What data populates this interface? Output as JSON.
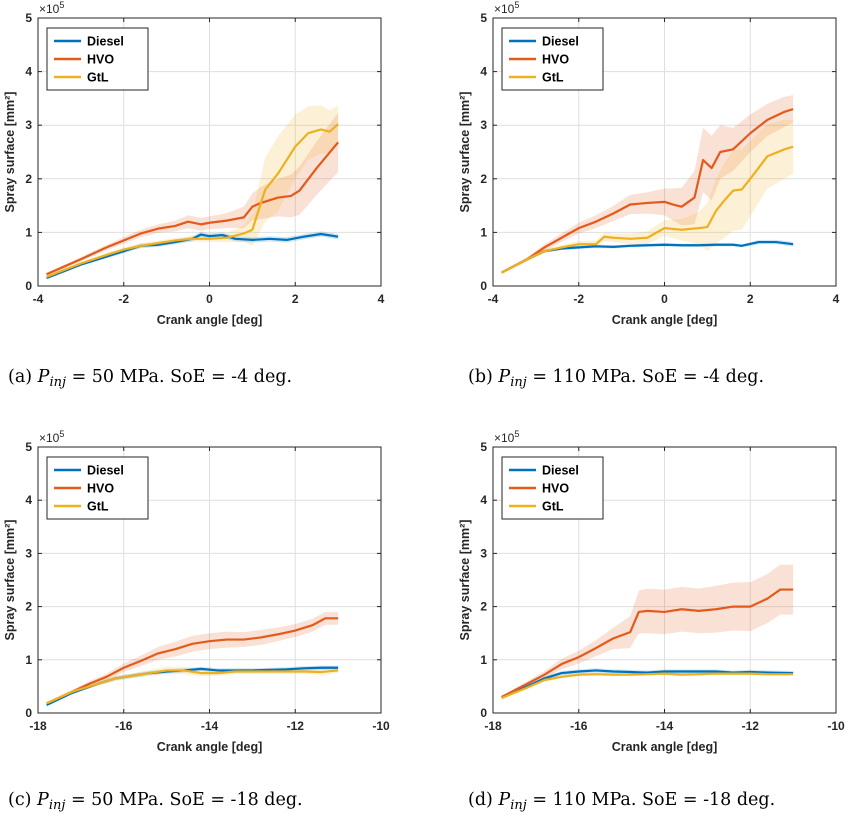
{
  "chart_data": [
    {
      "type": "line",
      "panel": "a",
      "caption": {
        "prefix": "(a)",
        "symbol": "P",
        "subscript": "inj",
        "rest": "= 50 MPa. SoE = -4 deg."
      },
      "xlabel": "Crank angle [deg]",
      "ylabel": "Spray surface [mm²]",
      "yexponent": "×10",
      "yexponent_power": "5",
      "xlim": [
        -4,
        4
      ],
      "ylim": [
        0,
        5
      ],
      "xticks": [
        -4,
        -2,
        0,
        2,
        4
      ],
      "yticks": [
        0,
        1,
        2,
        3,
        4,
        5
      ],
      "grid": true,
      "legend_location": "top-left",
      "series": [
        {
          "name": "Diesel",
          "color": "#0072BD",
          "x": [
            -3.8,
            -3.0,
            -2.4,
            -2.0,
            -1.6,
            -1.2,
            -0.8,
            -0.4,
            -0.2,
            0.0,
            0.3,
            0.6,
            1.0,
            1.4,
            1.8,
            2.2,
            2.6,
            3.0
          ],
          "y": [
            0.15,
            0.4,
            0.55,
            0.65,
            0.75,
            0.77,
            0.82,
            0.88,
            0.96,
            0.93,
            0.95,
            0.88,
            0.86,
            0.88,
            0.86,
            0.92,
            0.97,
            0.92
          ],
          "band": [
            0.03,
            0.03,
            0.03,
            0.04,
            0.04,
            0.04,
            0.04,
            0.05,
            0.05,
            0.05,
            0.05,
            0.05,
            0.05,
            0.05,
            0.05,
            0.05,
            0.05,
            0.05
          ]
        },
        {
          "name": "HVO",
          "color": "#E35A1B",
          "x": [
            -3.8,
            -3.0,
            -2.4,
            -2.0,
            -1.6,
            -1.2,
            -0.8,
            -0.5,
            -0.2,
            0.0,
            0.4,
            0.8,
            1.0,
            1.2,
            1.6,
            1.9,
            2.1,
            2.5,
            3.0
          ],
          "y": [
            0.22,
            0.5,
            0.72,
            0.85,
            0.98,
            1.07,
            1.12,
            1.2,
            1.15,
            1.18,
            1.22,
            1.28,
            1.48,
            1.55,
            1.65,
            1.68,
            1.78,
            2.2,
            2.68
          ],
          "band": [
            0.03,
            0.04,
            0.05,
            0.06,
            0.07,
            0.08,
            0.1,
            0.12,
            0.12,
            0.12,
            0.14,
            0.2,
            0.25,
            0.3,
            0.35,
            0.4,
            0.45,
            0.5,
            0.55
          ]
        },
        {
          "name": "GtL",
          "color": "#EDB120",
          "x": [
            -3.8,
            -3.0,
            -2.4,
            -2.0,
            -1.6,
            -1.2,
            -0.8,
            -0.4,
            0.0,
            0.4,
            0.8,
            1.0,
            1.3,
            1.6,
            2.0,
            2.3,
            2.6,
            2.8,
            3.0
          ],
          "y": [
            0.17,
            0.42,
            0.58,
            0.68,
            0.75,
            0.8,
            0.85,
            0.88,
            0.88,
            0.9,
            0.98,
            1.05,
            1.8,
            2.1,
            2.6,
            2.85,
            2.92,
            2.88,
            3.02
          ],
          "band": [
            0.03,
            0.03,
            0.04,
            0.04,
            0.05,
            0.05,
            0.05,
            0.05,
            0.06,
            0.08,
            0.15,
            0.3,
            0.6,
            0.7,
            0.6,
            0.5,
            0.45,
            0.4,
            0.35
          ]
        }
      ]
    },
    {
      "type": "line",
      "panel": "b",
      "caption": {
        "prefix": "(b)",
        "symbol": "P",
        "subscript": "inj",
        "rest": "= 110 MPa. SoE = -4 deg."
      },
      "xlabel": "Crank angle [deg]",
      "ylabel": "Spray surface [mm²]",
      "yexponent": "×10",
      "yexponent_power": "5",
      "xlim": [
        -4,
        4
      ],
      "ylim": [
        0,
        5
      ],
      "xticks": [
        -4,
        -2,
        0,
        2,
        4
      ],
      "yticks": [
        0,
        1,
        2,
        3,
        4,
        5
      ],
      "grid": true,
      "legend_location": "top-left",
      "series": [
        {
          "name": "Diesel",
          "color": "#0072BD",
          "x": [
            -3.8,
            -3.2,
            -2.8,
            -2.4,
            -2.0,
            -1.6,
            -1.2,
            -0.8,
            -0.4,
            0.0,
            0.4,
            0.8,
            1.2,
            1.6,
            1.8,
            2.2,
            2.6,
            3.0
          ],
          "y": [
            0.25,
            0.5,
            0.65,
            0.7,
            0.72,
            0.74,
            0.73,
            0.75,
            0.76,
            0.77,
            0.76,
            0.76,
            0.77,
            0.77,
            0.75,
            0.82,
            0.82,
            0.78
          ],
          "band": [
            0.02,
            0.03,
            0.03,
            0.03,
            0.03,
            0.03,
            0.03,
            0.03,
            0.03,
            0.03,
            0.03,
            0.03,
            0.03,
            0.03,
            0.03,
            0.04,
            0.04,
            0.04
          ]
        },
        {
          "name": "HVO",
          "color": "#E35A1B",
          "x": [
            -3.8,
            -3.2,
            -2.8,
            -2.4,
            -2.0,
            -1.6,
            -1.2,
            -0.8,
            -0.4,
            0.0,
            0.2,
            0.4,
            0.7,
            0.9,
            1.1,
            1.3,
            1.6,
            2.0,
            2.4,
            2.8,
            3.0
          ],
          "y": [
            0.25,
            0.5,
            0.72,
            0.9,
            1.08,
            1.2,
            1.35,
            1.52,
            1.55,
            1.57,
            1.52,
            1.48,
            1.65,
            2.35,
            2.2,
            2.5,
            2.55,
            2.85,
            3.1,
            3.25,
            3.3
          ],
          "band": [
            0.02,
            0.04,
            0.06,
            0.08,
            0.1,
            0.12,
            0.14,
            0.18,
            0.2,
            0.25,
            0.3,
            0.35,
            0.5,
            0.6,
            0.6,
            0.5,
            0.4,
            0.35,
            0.3,
            0.28,
            0.26
          ]
        },
        {
          "name": "GtL",
          "color": "#EDB120",
          "x": [
            -3.8,
            -3.2,
            -2.8,
            -2.4,
            -2.0,
            -1.6,
            -1.4,
            -1.2,
            -0.8,
            -0.4,
            0.0,
            0.4,
            0.8,
            1.0,
            1.2,
            1.4,
            1.6,
            1.8,
            2.0,
            2.4,
            2.8,
            3.0
          ],
          "y": [
            0.25,
            0.5,
            0.65,
            0.72,
            0.78,
            0.78,
            0.92,
            0.9,
            0.88,
            0.9,
            1.08,
            1.05,
            1.08,
            1.1,
            1.4,
            1.6,
            1.78,
            1.8,
            2.0,
            2.42,
            2.55,
            2.6
          ],
          "band": [
            0.02,
            0.03,
            0.04,
            0.05,
            0.06,
            0.07,
            0.08,
            0.08,
            0.1,
            0.12,
            0.15,
            0.2,
            0.3,
            0.45,
            0.6,
            0.7,
            0.75,
            0.75,
            0.7,
            0.6,
            0.55,
            0.5
          ]
        }
      ]
    },
    {
      "type": "line",
      "panel": "c",
      "caption": {
        "prefix": "(c)",
        "symbol": "P",
        "subscript": "inj",
        "rest": "= 50 MPa. SoE = -18 deg."
      },
      "xlabel": "Crank angle [deg]",
      "ylabel": "Spray surface [mm²]",
      "yexponent": "×10",
      "yexponent_power": "5",
      "xlim": [
        -18,
        -10
      ],
      "ylim": [
        0,
        5
      ],
      "xticks": [
        -18,
        -16,
        -14,
        -12,
        -10
      ],
      "yticks": [
        0,
        1,
        2,
        3,
        4,
        5
      ],
      "grid": true,
      "legend_location": "top-left",
      "series": [
        {
          "name": "Diesel",
          "color": "#0072BD",
          "x": [
            -17.8,
            -17.2,
            -16.6,
            -16.2,
            -15.8,
            -15.4,
            -15.0,
            -14.6,
            -14.2,
            -13.8,
            -13.4,
            -13.0,
            -12.6,
            -12.2,
            -11.8,
            -11.4,
            -11.0
          ],
          "y": [
            0.15,
            0.38,
            0.55,
            0.65,
            0.7,
            0.75,
            0.78,
            0.8,
            0.83,
            0.8,
            0.8,
            0.8,
            0.81,
            0.82,
            0.84,
            0.85,
            0.85
          ],
          "band": [
            0.02,
            0.03,
            0.03,
            0.04,
            0.04,
            0.04,
            0.04,
            0.04,
            0.04,
            0.04,
            0.04,
            0.04,
            0.04,
            0.04,
            0.04,
            0.04,
            0.04
          ]
        },
        {
          "name": "HVO",
          "color": "#E35A1B",
          "x": [
            -17.8,
            -17.2,
            -16.8,
            -16.4,
            -16.0,
            -15.6,
            -15.2,
            -14.8,
            -14.4,
            -14.0,
            -13.6,
            -13.2,
            -12.8,
            -12.4,
            -12.0,
            -11.6,
            -11.3,
            -11.0
          ],
          "y": [
            0.18,
            0.4,
            0.55,
            0.68,
            0.85,
            0.98,
            1.12,
            1.2,
            1.3,
            1.35,
            1.38,
            1.38,
            1.42,
            1.48,
            1.55,
            1.65,
            1.78,
            1.78
          ],
          "band": [
            0.02,
            0.04,
            0.05,
            0.06,
            0.08,
            0.1,
            0.12,
            0.14,
            0.15,
            0.15,
            0.15,
            0.14,
            0.14,
            0.13,
            0.12,
            0.12,
            0.12,
            0.12
          ]
        },
        {
          "name": "GtL",
          "color": "#EDB120",
          "x": [
            -17.8,
            -17.2,
            -16.6,
            -16.2,
            -15.8,
            -15.4,
            -15.0,
            -14.6,
            -14.2,
            -13.8,
            -13.4,
            -13.0,
            -12.6,
            -12.2,
            -11.8,
            -11.4,
            -11.0
          ],
          "y": [
            0.18,
            0.4,
            0.55,
            0.65,
            0.7,
            0.75,
            0.8,
            0.8,
            0.75,
            0.75,
            0.78,
            0.78,
            0.78,
            0.78,
            0.78,
            0.77,
            0.8
          ],
          "band": [
            0.02,
            0.03,
            0.04,
            0.05,
            0.05,
            0.06,
            0.07,
            0.07,
            0.06,
            0.05,
            0.05,
            0.05,
            0.05,
            0.05,
            0.05,
            0.05,
            0.05
          ]
        }
      ]
    },
    {
      "type": "line",
      "panel": "d",
      "caption": {
        "prefix": "(d)",
        "symbol": "P",
        "subscript": "inj",
        "rest": "= 110 MPa. SoE = -18 deg."
      },
      "xlabel": "Crank angle [deg]",
      "ylabel": "Spray surface [mm²]",
      "yexponent": "×10",
      "yexponent_power": "5",
      "xlim": [
        -18,
        -10
      ],
      "ylim": [
        0,
        5
      ],
      "xticks": [
        -18,
        -16,
        -14,
        -12,
        -10
      ],
      "yticks": [
        0,
        1,
        2,
        3,
        4,
        5
      ],
      "grid": true,
      "legend_location": "top-left",
      "series": [
        {
          "name": "Diesel",
          "color": "#0072BD",
          "x": [
            -17.8,
            -17.2,
            -16.8,
            -16.4,
            -16.0,
            -15.6,
            -15.2,
            -14.8,
            -14.4,
            -14.0,
            -13.6,
            -13.2,
            -12.8,
            -12.4,
            -12.0,
            -11.6,
            -11.0
          ],
          "y": [
            0.3,
            0.5,
            0.65,
            0.75,
            0.78,
            0.8,
            0.78,
            0.77,
            0.76,
            0.78,
            0.78,
            0.78,
            0.78,
            0.76,
            0.77,
            0.76,
            0.75
          ],
          "band": [
            0.02,
            0.03,
            0.04,
            0.04,
            0.04,
            0.04,
            0.04,
            0.04,
            0.04,
            0.04,
            0.04,
            0.04,
            0.04,
            0.04,
            0.04,
            0.04,
            0.04
          ]
        },
        {
          "name": "HVO",
          "color": "#E35A1B",
          "x": [
            -17.8,
            -17.2,
            -16.8,
            -16.4,
            -16.0,
            -15.6,
            -15.2,
            -14.8,
            -14.6,
            -14.4,
            -14.0,
            -13.6,
            -13.2,
            -12.8,
            -12.4,
            -12.0,
            -11.6,
            -11.3,
            -11.0
          ],
          "y": [
            0.3,
            0.55,
            0.72,
            0.92,
            1.05,
            1.22,
            1.4,
            1.52,
            1.9,
            1.92,
            1.9,
            1.95,
            1.92,
            1.95,
            2.0,
            2.0,
            2.15,
            2.32,
            2.32
          ],
          "band": [
            0.02,
            0.05,
            0.07,
            0.1,
            0.12,
            0.15,
            0.2,
            0.3,
            0.4,
            0.42,
            0.42,
            0.42,
            0.42,
            0.44,
            0.45,
            0.46,
            0.46,
            0.47,
            0.47
          ]
        },
        {
          "name": "GtL",
          "color": "#EDB120",
          "x": [
            -17.8,
            -17.2,
            -16.8,
            -16.4,
            -16.0,
            -15.6,
            -15.2,
            -14.8,
            -14.4,
            -14.0,
            -13.6,
            -13.2,
            -12.8,
            -12.4,
            -12.0,
            -11.6,
            -11.0
          ],
          "y": [
            0.28,
            0.48,
            0.62,
            0.68,
            0.72,
            0.73,
            0.72,
            0.72,
            0.73,
            0.74,
            0.72,
            0.73,
            0.74,
            0.74,
            0.74,
            0.73,
            0.73
          ],
          "band": [
            0.02,
            0.03,
            0.03,
            0.03,
            0.03,
            0.03,
            0.03,
            0.03,
            0.03,
            0.03,
            0.03,
            0.03,
            0.03,
            0.03,
            0.03,
            0.03,
            0.03
          ]
        }
      ]
    }
  ]
}
